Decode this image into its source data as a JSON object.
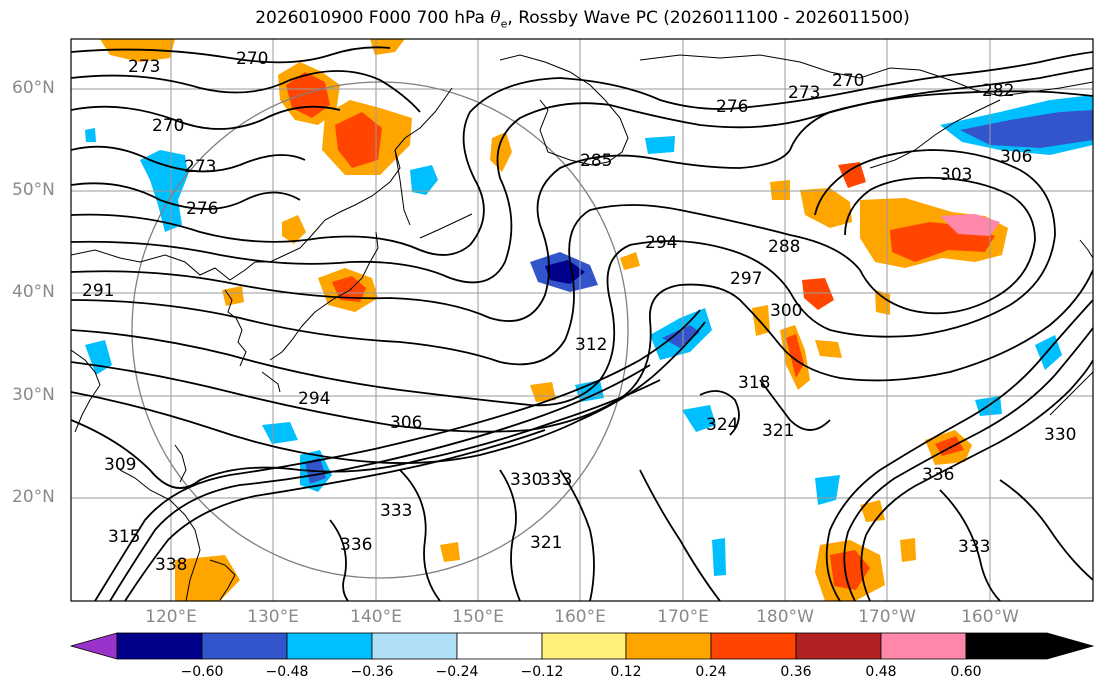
{
  "title_main": "2026010900 F000 700 hPa ",
  "title_symbol": "θ",
  "title_sub": "e",
  "title_tail": ", Rossby Wave PC (2026011100 - 2026011500)",
  "lat_labels": [
    "60°N",
    "50°N",
    "40°N",
    "30°N",
    "20°N"
  ],
  "lon_labels": [
    "120°E",
    "130°E",
    "140°E",
    "150°E",
    "160°E",
    "170°E",
    "180°W",
    "170°W",
    "160°W"
  ],
  "colorbar": {
    "ticks": [
      "−0.60",
      "−0.48",
      "−0.36",
      "−0.24",
      "−0.12",
      "0.12",
      "0.24",
      "0.36",
      "0.48",
      "0.60"
    ],
    "colors": [
      "#9933cc",
      "#00008b",
      "#3355cc",
      "#00bfff",
      "#b0e0f8",
      "#ffffff",
      "#fff07a",
      "#ffa500",
      "#ff4500",
      "#b22222",
      "#ff88aa"
    ]
  },
  "contour_labels": [
    "270",
    "270",
    "273",
    "276",
    "291",
    "294",
    "306",
    "309",
    "312",
    "315",
    "321",
    "324",
    "330",
    "333",
    "333",
    "336",
    "338",
    "285",
    "288",
    "294",
    "297",
    "300",
    "303",
    "306",
    "276",
    "273",
    "270",
    "282",
    "318",
    "321",
    "330",
    "333",
    "336",
    "273"
  ],
  "colors": {
    "contour": "#000000",
    "grid": "#9a9a9a",
    "coast": "#000000"
  }
}
